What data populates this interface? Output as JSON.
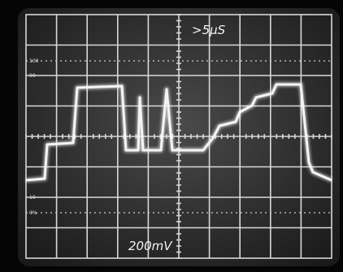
{
  "screen": {
    "time_per_div": ">5μS",
    "volts_per_div": "200mV",
    "graticule_labels": [
      "100",
      "90",
      "10",
      "0%"
    ]
  }
}
